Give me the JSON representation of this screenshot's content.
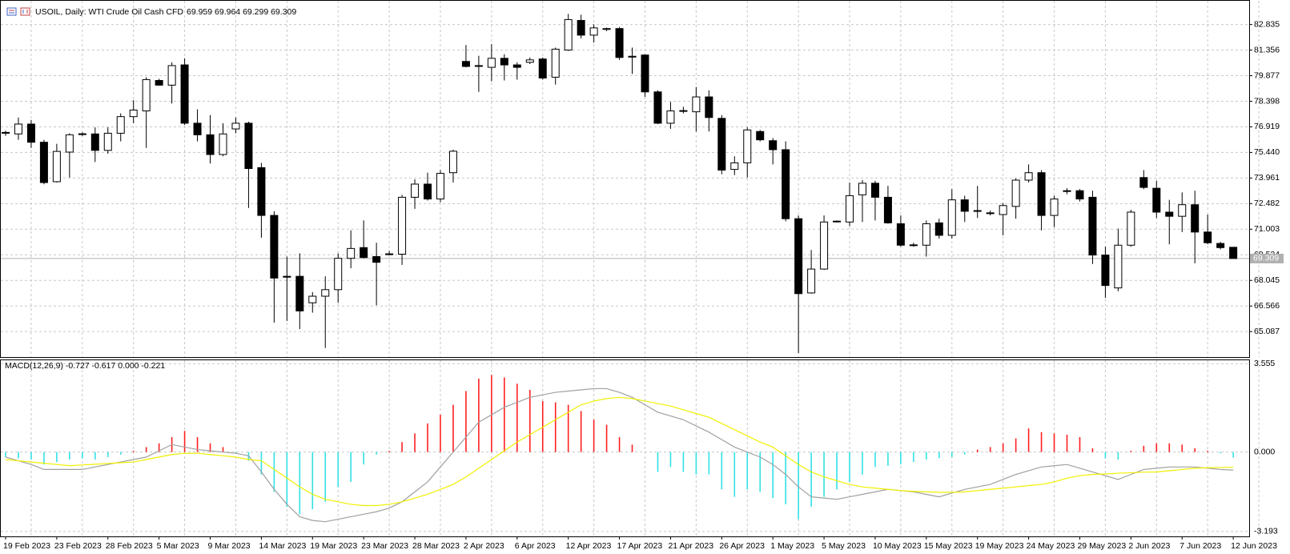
{
  "chart_data": [
    {
      "type": "candlestick",
      "title": "USOIL, Daily: WTI Crude Oil Cash CFD",
      "subtitle": "69.959 69.964 69.299 69.309",
      "categories": [
        "19 Feb 2023",
        null,
        null,
        null,
        "23 Feb 2023",
        null,
        null,
        null,
        "28 Feb 2023",
        null,
        null,
        null,
        "5 Mar 2023",
        null,
        null,
        null,
        "9 Mar 2023",
        null,
        null,
        null,
        "14 Mar 2023",
        null,
        null,
        null,
        "19 Mar 2023",
        null,
        null,
        null,
        "23 Mar 2023",
        null,
        null,
        null,
        "28 Mar 2023",
        null,
        null,
        null,
        "2 Apr 2023",
        null,
        null,
        null,
        "6 Apr 2023",
        null,
        null,
        null,
        "12 Apr 2023",
        null,
        null,
        null,
        "17 Apr 2023",
        null,
        null,
        null,
        "21 Apr 2023",
        null,
        null,
        null,
        "26 Apr 2023",
        null,
        null,
        null,
        "1 May 2023",
        null,
        null,
        null,
        "5 May 2023",
        null,
        null,
        null,
        "10 May 2023",
        null,
        null,
        null,
        "15 May 2023",
        null,
        null,
        null,
        "19 May 2023",
        null,
        null,
        null,
        "24 May 2023",
        null,
        null,
        null,
        "29 May 2023",
        null,
        null,
        null,
        "2 Jun 2023",
        null,
        null,
        null,
        "7 Jun 2023",
        null,
        null,
        null,
        "12 Jun 2023"
      ],
      "open": [
        76.6,
        76.51,
        77.08,
        76.03,
        73.75,
        75.46,
        76.48,
        76.51,
        75.56,
        76.55,
        77.51,
        77.84,
        79.6,
        79.33,
        80.5,
        77.13,
        76.46,
        75.32,
        76.8,
        77.13,
        74.56,
        71.8,
        68.28,
        68.28,
        66.75,
        67.13,
        67.51,
        69.32,
        69.94,
        69.42,
        69.56,
        69.56,
        72.85,
        73.61,
        72.75,
        74.27,
        80.7,
        80.43,
        80.36,
        80.88,
        80.5,
        80.65,
        80.84,
        79.79,
        81.36,
        83.07,
        82.22,
        82.55,
        82.6,
        80.95,
        81.07,
        78.94,
        77.13,
        77.82,
        77.79,
        78.65,
        77.41,
        74.46,
        74.84,
        76.65,
        76.12,
        75.6,
        71.61,
        67.32,
        68.7,
        71.45,
        71.42,
        72.99,
        73.66,
        72.85,
        71.32,
        70.1,
        70.08,
        71.37,
        70.65,
        72.7,
        72.08,
        71.95,
        71.85,
        72.32,
        73.84,
        74.27,
        71.8,
        73.19,
        73.23,
        72.85,
        69.51,
        67.61,
        70.08,
        73.99,
        73.37,
        71.99,
        71.75,
        72.42,
        70.84,
        70.18,
        69.959
      ],
      "high": [
        76.7,
        77.46,
        77.32,
        76.17,
        75.94,
        76.55,
        76.6,
        76.89,
        76.89,
        77.7,
        78.46,
        79.79,
        79.7,
        80.65,
        80.88,
        77.93,
        77.6,
        77.13,
        77.46,
        77.22,
        74.84,
        72.04,
        69.42,
        69.61,
        67.37,
        68.28,
        69.61,
        70.94,
        71.51,
        70.22,
        69.75,
        72.99,
        73.89,
        74.27,
        74.42,
        75.6,
        81.65,
        81.03,
        81.7,
        81.12,
        80.65,
        80.93,
        80.93,
        81.5,
        83.45,
        83.4,
        82.84,
        82.65,
        82.69,
        81.5,
        81.12,
        79.03,
        78.36,
        78.08,
        79.22,
        79.03,
        77.6,
        75.22,
        76.89,
        76.74,
        76.27,
        76.08,
        71.8,
        69.8,
        71.8,
        71.51,
        73.7,
        73.84,
        73.8,
        73.51,
        71.8,
        70.22,
        71.51,
        71.61,
        73.32,
        72.94,
        73.51,
        72.08,
        72.51,
        73.94,
        74.75,
        74.42,
        72.94,
        73.37,
        73.32,
        73.23,
        69.99,
        71.04,
        72.13,
        74.42,
        73.8,
        72.7,
        73.13,
        73.23,
        71.85,
        70.27,
        69.964
      ],
      "low": [
        76.4,
        76.17,
        75.7,
        73.6,
        73.7,
        73.99,
        76.4,
        74.89,
        75.37,
        76.08,
        77.13,
        75.7,
        79.3,
        78.27,
        77.03,
        76.08,
        74.8,
        75.22,
        76.55,
        72.23,
        70.51,
        65.61,
        65.7,
        65.23,
        66.18,
        64.14,
        66.75,
        68.75,
        69.32,
        66.61,
        69.5,
        68.94,
        72.18,
        72.66,
        72.56,
        73.7,
        80.36,
        78.94,
        79.55,
        79.6,
        79.65,
        80.55,
        79.65,
        79.36,
        81.31,
        82.03,
        81.79,
        82.45,
        80.79,
        79.98,
        78.65,
        77.08,
        76.8,
        77.7,
        76.65,
        76.65,
        74.18,
        74.13,
        73.99,
        76.08,
        74.75,
        71.46,
        63.85,
        67.28,
        68.65,
        71.4,
        71.18,
        71.42,
        71.51,
        71.32,
        69.99,
        69.99,
        69.42,
        70.46,
        70.46,
        71.42,
        71.65,
        71.8,
        70.65,
        71.61,
        73.7,
        70.94,
        71.13,
        73.03,
        72.61,
        68.99,
        67.04,
        67.42,
        69.99,
        73.32,
        71.65,
        70.13,
        70.84,
        69.03,
        70.13,
        69.84,
        69.299
      ],
      "close": [
        76.55,
        77.08,
        76.03,
        73.7,
        75.5,
        76.46,
        76.52,
        75.56,
        76.55,
        77.51,
        77.89,
        79.65,
        79.33,
        80.46,
        77.13,
        76.46,
        75.32,
        76.51,
        77.13,
        74.51,
        71.8,
        68.18,
        68.23,
        66.28,
        67.13,
        67.51,
        69.32,
        69.89,
        69.37,
        69.09,
        69.58,
        72.85,
        73.61,
        72.75,
        74.23,
        75.51,
        80.41,
        80.46,
        80.88,
        80.5,
        80.36,
        80.79,
        79.74,
        81.41,
        83.12,
        82.22,
        82.64,
        82.6,
        80.93,
        81.0,
        78.94,
        77.13,
        77.84,
        77.86,
        78.65,
        77.46,
        74.42,
        74.84,
        76.74,
        76.17,
        75.6,
        71.61,
        67.28,
        68.7,
        71.42,
        71.47,
        72.94,
        73.66,
        72.85,
        71.37,
        70.08,
        70.07,
        71.32,
        70.65,
        72.7,
        72.04,
        72.04,
        71.92,
        72.37,
        73.84,
        74.27,
        71.8,
        72.75,
        73.23,
        72.75,
        69.51,
        67.75,
        70.08,
        71.99,
        73.42,
        71.99,
        71.75,
        72.42,
        70.84,
        70.22,
        69.94,
        69.309
      ],
      "up_color": "#ffffff",
      "down_color": "#000000",
      "last_price": 69.309,
      "ylim": [
        63.66,
        84.02
      ],
      "yticks": [
        82.835,
        81.356,
        79.877,
        78.398,
        76.919,
        {
          "value": 75.44,
          "label": "75.440"
        },
        73.961,
        72.482,
        71.003,
        69.524,
        68.045,
        66.566,
        65.087
      ],
      "grid": true
    },
    {
      "type": "macd",
      "title": "MACD(12,26,9) -0.727 -0.617 0.000 -0.221",
      "histogram": {
        "positive_color": "#ff2020",
        "negative_color": "#33e0e6",
        "values": [
          -0.2,
          -0.25,
          -0.3,
          -0.5,
          -0.4,
          -0.3,
          -0.25,
          -0.3,
          -0.2,
          -0.1,
          0.05,
          0.2,
          0.35,
          0.6,
          0.85,
          0.6,
          0.35,
          0.2,
          -0.05,
          -0.35,
          -0.9,
          -1.6,
          -2.2,
          -2.5,
          -2.3,
          -2.0,
          -1.4,
          -1.2,
          -0.5,
          -0.1,
          0.05,
          0.4,
          0.75,
          1.15,
          1.5,
          1.9,
          2.45,
          2.95,
          3.1,
          3.0,
          2.75,
          2.5,
          2.05,
          2.0,
          1.9,
          1.65,
          1.3,
          1.1,
          0.6,
          0.3,
          0.0,
          -0.8,
          -0.6,
          -0.8,
          -0.9,
          -0.9,
          -1.5,
          -1.8,
          -1.5,
          -1.6,
          -1.85,
          -2.1,
          -2.7,
          -2.2,
          -1.8,
          -1.5,
          -1.2,
          -0.9,
          -0.6,
          -0.55,
          -0.5,
          -0.4,
          -0.3,
          -0.25,
          -0.2,
          -0.1,
          0.1,
          0.2,
          0.35,
          0.55,
          0.95,
          0.8,
          0.75,
          0.7,
          0.6,
          0.15,
          -0.25,
          -0.3,
          0.05,
          0.25,
          0.35,
          0.35,
          0.3,
          0.15,
          0.05,
          -0.05,
          -0.221
        ]
      },
      "lines": [
        {
          "color": "#a0a0a0",
          "values": [
            -0.2,
            -0.35,
            -0.5,
            -0.7,
            -0.7,
            -0.7,
            -0.7,
            -0.6,
            -0.5,
            -0.4,
            -0.3,
            -0.2,
            0.05,
            0.3,
            0.2,
            0.1,
            0.05,
            0.0,
            -0.05,
            -0.15,
            -0.8,
            -1.5,
            -2.1,
            -2.6,
            -2.75,
            -2.8,
            -2.7,
            -2.6,
            -2.5,
            -2.4,
            -2.25,
            -2.0,
            -1.6,
            -1.2,
            -0.6,
            0.0,
            0.6,
            1.2,
            1.5,
            1.8,
            2.0,
            2.2,
            2.3,
            2.4,
            2.45,
            2.5,
            2.55,
            2.55,
            2.4,
            2.2,
            1.9,
            1.6,
            1.45,
            1.3,
            1.05,
            0.8,
            0.5,
            0.2,
            0.0,
            -0.2,
            -0.5,
            -0.9,
            -1.4,
            -1.8,
            -1.85,
            -1.9,
            -1.8,
            -1.7,
            -1.6,
            -1.5,
            -1.55,
            -1.6,
            -1.7,
            -1.8,
            -1.65,
            -1.5,
            -1.4,
            -1.3,
            -1.1,
            -0.9,
            -0.75,
            -0.6,
            -0.55,
            -0.5,
            -0.65,
            -0.8,
            -0.95,
            -1.1,
            -0.9,
            -0.7,
            -0.65,
            -0.6,
            -0.6,
            -0.6,
            -0.65,
            -0.7,
            -0.727
          ]
        },
        {
          "color": "#f0f000",
          "values": [
            -0.3,
            -0.35,
            -0.4,
            -0.45,
            -0.5,
            -0.55,
            -0.52,
            -0.49,
            -0.46,
            -0.43,
            -0.4,
            -0.3,
            -0.2,
            -0.1,
            -0.05,
            -0.05,
            -0.1,
            -0.15,
            -0.2,
            -0.3,
            -0.35,
            -0.7,
            -1.05,
            -1.4,
            -1.7,
            -1.9,
            -2.0,
            -2.1,
            -2.15,
            -2.15,
            -2.1,
            -2.0,
            -1.85,
            -1.7,
            -1.5,
            -1.3,
            -1.0,
            -0.65,
            -0.3,
            0.05,
            0.4,
            0.7,
            1.0,
            1.3,
            1.6,
            1.9,
            2.05,
            2.15,
            2.2,
            2.15,
            2.05,
            1.95,
            1.85,
            1.7,
            1.55,
            1.4,
            1.15,
            0.9,
            0.65,
            0.4,
            0.2,
            -0.15,
            -0.5,
            -0.8,
            -1.0,
            -1.15,
            -1.3,
            -1.4,
            -1.45,
            -1.5,
            -1.55,
            -1.58,
            -1.6,
            -1.62,
            -1.62,
            -1.6,
            -1.55,
            -1.5,
            -1.45,
            -1.4,
            -1.35,
            -1.3,
            -1.2,
            -1.05,
            -0.95,
            -0.9,
            -0.88,
            -0.85,
            -0.83,
            -0.81,
            -0.8,
            -0.75,
            -0.7,
            -0.65,
            -0.63,
            -0.62,
            -0.617
          ]
        }
      ],
      "ylim": [
        -3.39,
        3.69
      ],
      "yticks": [
        3.555,
        {
          "value": 0,
          "label": "0.000"
        },
        -3.193
      ],
      "grid": true
    }
  ]
}
